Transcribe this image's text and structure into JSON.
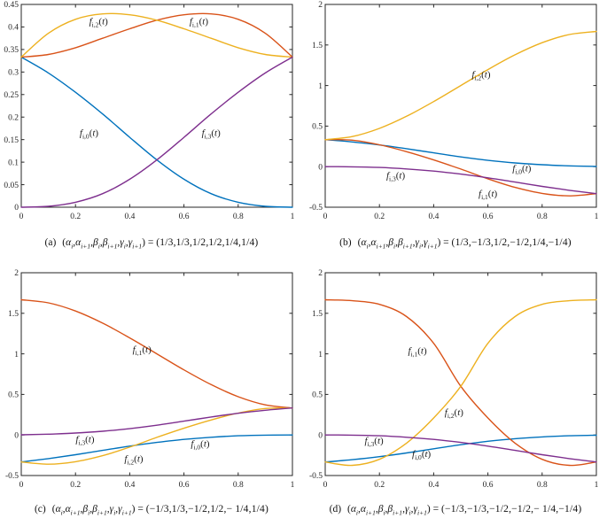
{
  "figure": {
    "background": "#ffffff",
    "description_tags": [
      "(a)",
      "(b)",
      "(c)",
      "(d)"
    ]
  },
  "colors": {
    "f0": "#0072BD",
    "f1": "#D95319",
    "f2": "#EDB120",
    "f3": "#7E2F8E",
    "axis": "#262626",
    "text": "#1a1a1a"
  },
  "label_parts": {
    "base": "f",
    "open": "(",
    "var": "t",
    "close": ")"
  },
  "caption_lhs": {
    "open": "(",
    "params": [
      {
        "sym": "α",
        "sub": "i"
      },
      {
        "sym": "α",
        "sub": "i+1"
      },
      {
        "sym": "β",
        "sub": "i"
      },
      {
        "sym": "β",
        "sub": "i+1"
      },
      {
        "sym": "γ",
        "sub": "i"
      },
      {
        "sym": "γ",
        "sub": "i+1"
      }
    ],
    "sep": ",",
    "close": ")",
    "equals": " = "
  },
  "chart_data": [
    {
      "id": "a",
      "type": "line",
      "caption_tag": "(a)",
      "caption_values": "(1/3,1/3,1/2,1/2,1/4,1/4)",
      "title": "",
      "xlabel": "",
      "ylabel": "",
      "grid": false,
      "legend": "inline-annotations",
      "xlim": [
        0,
        1
      ],
      "ylim": [
        0,
        0.45
      ],
      "xticks": [
        0,
        0.2,
        0.4,
        0.6,
        0.8,
        1
      ],
      "xtick_labels": [
        "0",
        "0.2",
        "0.4",
        "0.6",
        "0.8",
        "1"
      ],
      "yticks": [
        0,
        0.05,
        0.1,
        0.15,
        0.2,
        0.25,
        0.3,
        0.35,
        0.4,
        0.45
      ],
      "ytick_labels": [
        "0",
        "0.05",
        "0.1",
        "0.15",
        "0.2",
        "0.25",
        "0.3",
        "0.35",
        "0.4",
        "0.45"
      ],
      "x": [
        0,
        0.1,
        0.2,
        0.3,
        0.4,
        0.5,
        0.6,
        0.7,
        0.8,
        0.9,
        1
      ],
      "series": [
        {
          "name": "f_i0",
          "sub": "i,0",
          "color_key": "f0",
          "label_x": 0.25,
          "label_y": 0.158,
          "values": [
            0.333,
            0.298,
            0.255,
            0.207,
            0.155,
            0.105,
            0.062,
            0.03,
            0.011,
            0.002,
            0.0
          ]
        },
        {
          "name": "f_i1",
          "sub": "i,1",
          "color_key": "f1",
          "label_x": 0.655,
          "label_y": 0.406,
          "values": [
            0.333,
            0.339,
            0.354,
            0.375,
            0.396,
            0.415,
            0.427,
            0.429,
            0.417,
            0.386,
            0.333
          ]
        },
        {
          "name": "f_i2",
          "sub": "i,2",
          "color_key": "f2",
          "label_x": 0.285,
          "label_y": 0.406,
          "values": [
            0.333,
            0.386,
            0.417,
            0.429,
            0.427,
            0.415,
            0.396,
            0.375,
            0.354,
            0.339,
            0.333
          ]
        },
        {
          "name": "f_i3",
          "sub": "i,3",
          "color_key": "f3",
          "label_x": 0.7,
          "label_y": 0.158,
          "values": [
            0.0,
            0.002,
            0.011,
            0.03,
            0.062,
            0.105,
            0.155,
            0.207,
            0.255,
            0.298,
            0.333
          ]
        }
      ]
    },
    {
      "id": "b",
      "type": "line",
      "caption_tag": "(b)",
      "caption_values": "(1/3,−1/3,1/2,−1/2,1/4,−1/4)",
      "title": "",
      "xlabel": "",
      "ylabel": "",
      "grid": false,
      "legend": "inline-annotations",
      "xlim": [
        0,
        1
      ],
      "ylim": [
        -0.5,
        2
      ],
      "xticks": [
        0,
        0.2,
        0.4,
        0.6,
        0.8,
        1
      ],
      "xtick_labels": [
        "0",
        "0.2",
        "0.4",
        "0.6",
        "0.8",
        "1"
      ],
      "yticks": [
        -0.5,
        0,
        0.5,
        1,
        1.5,
        2
      ],
      "ytick_labels": [
        "-0.5",
        "0",
        "0.5",
        "1",
        "1.5",
        "2"
      ],
      "x": [
        0,
        0.1,
        0.2,
        0.3,
        0.4,
        0.5,
        0.6,
        0.7,
        0.8,
        0.9,
        1
      ],
      "series": [
        {
          "name": "f_i0",
          "sub": "i,0",
          "color_key": "f0",
          "label_x": 0.725,
          "label_y": -0.06,
          "values": [
            0.333,
            0.305,
            0.268,
            0.222,
            0.17,
            0.12,
            0.078,
            0.046,
            0.024,
            0.01,
            0.003
          ]
        },
        {
          "name": "f_i1",
          "sub": "i,1",
          "color_key": "f1",
          "label_x": 0.6,
          "label_y": -0.37,
          "values": [
            0.333,
            0.326,
            0.27,
            0.185,
            0.083,
            -0.03,
            -0.15,
            -0.255,
            -0.33,
            -0.36,
            -0.333
          ]
        },
        {
          "name": "f_i2",
          "sub": "i,2",
          "color_key": "f2",
          "label_x": 0.575,
          "label_y": 1.1,
          "values": [
            0.333,
            0.371,
            0.472,
            0.621,
            0.802,
            1.0,
            1.197,
            1.379,
            1.528,
            1.629,
            1.667
          ]
        },
        {
          "name": "f_i3",
          "sub": "i,3",
          "color_key": "f3",
          "label_x": 0.26,
          "label_y": -0.145,
          "values": [
            0.0,
            -0.002,
            -0.01,
            -0.028,
            -0.055,
            -0.092,
            -0.138,
            -0.19,
            -0.243,
            -0.291,
            -0.333
          ]
        }
      ]
    },
    {
      "id": "c",
      "type": "line",
      "caption_tag": "(c)",
      "caption_values": "(−1/3,1/3,−1/2,1/2,− 1/4,1/4)",
      "title": "",
      "xlabel": "",
      "ylabel": "",
      "grid": false,
      "legend": "inline-annotations",
      "xlim": [
        0,
        1
      ],
      "ylim": [
        -0.5,
        2
      ],
      "xticks": [
        0,
        0.2,
        0.4,
        0.6,
        0.8,
        1
      ],
      "xtick_labels": [
        "0",
        "0.2",
        "0.4",
        "0.6",
        "0.8",
        "1"
      ],
      "yticks": [
        -0.5,
        0,
        0.5,
        1,
        1.5,
        2
      ],
      "ytick_labels": [
        "-0.5",
        "0",
        "0.5",
        "1",
        "1.5",
        "2"
      ],
      "x": [
        0,
        0.1,
        0.2,
        0.3,
        0.4,
        0.5,
        0.6,
        0.7,
        0.8,
        0.9,
        1
      ],
      "series": [
        {
          "name": "f_i0",
          "sub": "i,0",
          "color_key": "f0",
          "label_x": 0.66,
          "label_y": -0.145,
          "values": [
            -0.333,
            -0.291,
            -0.243,
            -0.19,
            -0.138,
            -0.092,
            -0.055,
            -0.028,
            -0.01,
            -0.002,
            0.0
          ]
        },
        {
          "name": "f_i1",
          "sub": "i,1",
          "color_key": "f1",
          "label_x": 0.445,
          "label_y": 1.02,
          "values": [
            1.667,
            1.629,
            1.528,
            1.379,
            1.197,
            1.0,
            0.802,
            0.621,
            0.472,
            0.371,
            0.333
          ]
        },
        {
          "name": "f_i2",
          "sub": "i,2",
          "color_key": "f2",
          "label_x": 0.415,
          "label_y": -0.33,
          "values": [
            -0.333,
            -0.36,
            -0.33,
            -0.255,
            -0.15,
            -0.03,
            0.083,
            0.185,
            0.27,
            0.326,
            0.333
          ]
        },
        {
          "name": "f_i3",
          "sub": "i,3",
          "color_key": "f3",
          "label_x": 0.235,
          "label_y": -0.09,
          "values": [
            0.002,
            0.01,
            0.024,
            0.046,
            0.078,
            0.12,
            0.17,
            0.222,
            0.268,
            0.305,
            0.333
          ]
        }
      ]
    },
    {
      "id": "d",
      "type": "line",
      "caption_tag": "(d)",
      "caption_values": "(−1/3,−1/3,−1/2,−1/2,− 1/4,−1/4)",
      "title": "",
      "xlabel": "",
      "ylabel": "",
      "grid": false,
      "legend": "inline-annotations",
      "xlim": [
        0,
        1
      ],
      "ylim": [
        -0.5,
        2
      ],
      "xticks": [
        0,
        0.2,
        0.4,
        0.6,
        0.8,
        1
      ],
      "xtick_labels": [
        "0",
        "0.2",
        "0.4",
        "0.6",
        "0.8",
        "1"
      ],
      "yticks": [
        -0.5,
        0,
        0.5,
        1,
        1.5,
        2
      ],
      "ytick_labels": [
        "-0.5",
        "0",
        "0.5",
        "1",
        "1.5",
        "2"
      ],
      "x": [
        0,
        0.1,
        0.2,
        0.3,
        0.4,
        0.5,
        0.6,
        0.7,
        0.8,
        0.9,
        1
      ],
      "series": [
        {
          "name": "f_i0",
          "sub": "i,0",
          "color_key": "f0",
          "label_x": 0.355,
          "label_y": -0.27,
          "values": [
            -0.333,
            -0.305,
            -0.268,
            -0.222,
            -0.17,
            -0.12,
            -0.078,
            -0.046,
            -0.024,
            -0.01,
            -0.003
          ]
        },
        {
          "name": "f_i1",
          "sub": "i,1",
          "color_key": "f1",
          "label_x": 0.34,
          "label_y": 1.0,
          "values": [
            1.667,
            1.655,
            1.61,
            1.46,
            1.13,
            0.6,
            0.21,
            -0.1,
            -0.3,
            -0.375,
            -0.333
          ]
        },
        {
          "name": "f_i2",
          "sub": "i,2",
          "color_key": "f2",
          "label_x": 0.475,
          "label_y": 0.24,
          "values": [
            -0.333,
            -0.375,
            -0.3,
            -0.1,
            0.21,
            0.6,
            1.13,
            1.46,
            1.61,
            1.655,
            1.667
          ]
        },
        {
          "name": "f_i3",
          "sub": "i,3",
          "color_key": "f3",
          "label_x": 0.18,
          "label_y": -0.105,
          "values": [
            0.0,
            -0.002,
            -0.01,
            -0.028,
            -0.055,
            -0.092,
            -0.138,
            -0.19,
            -0.243,
            -0.291,
            -0.333
          ]
        }
      ]
    }
  ]
}
